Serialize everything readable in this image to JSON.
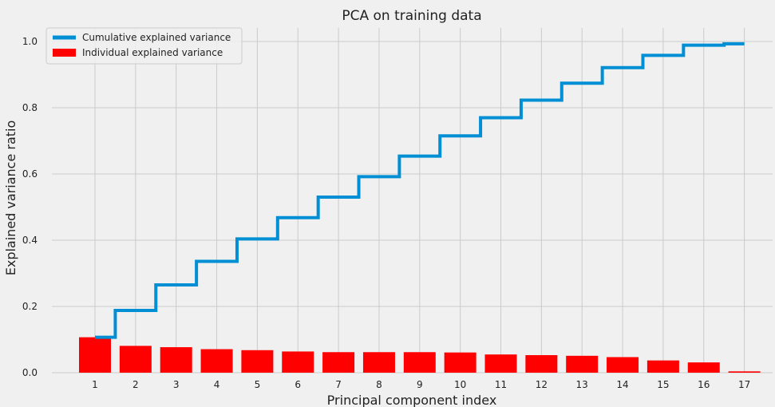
{
  "chart_data": {
    "type": "bar",
    "title": "PCA on training data",
    "xlabel": "Principal component index",
    "ylabel": "Explained variance ratio",
    "categories": [
      "1",
      "2",
      "3",
      "4",
      "5",
      "6",
      "7",
      "8",
      "9",
      "10",
      "11",
      "12",
      "13",
      "14",
      "15",
      "16",
      "17"
    ],
    "ylim": [
      0,
      1.05
    ],
    "yticks": [
      "0.0",
      "0.2",
      "0.4",
      "0.6",
      "0.8",
      "1.0"
    ],
    "grid": true,
    "legend_position": "top-left",
    "series": [
      {
        "name": "Individual explained variance",
        "kind": "bar",
        "color": "#ff0000",
        "values": [
          0.107,
          0.081,
          0.077,
          0.071,
          0.068,
          0.064,
          0.062,
          0.062,
          0.062,
          0.061,
          0.055,
          0.053,
          0.051,
          0.047,
          0.037,
          0.031,
          0.004
        ]
      },
      {
        "name": "Cumulative explained variance",
        "kind": "step",
        "color": "#008fd5",
        "values": [
          0.107,
          0.188,
          0.265,
          0.336,
          0.404,
          0.468,
          0.53,
          0.592,
          0.654,
          0.715,
          0.77,
          0.823,
          0.874,
          0.921,
          0.958,
          0.989,
          0.993
        ]
      }
    ]
  }
}
